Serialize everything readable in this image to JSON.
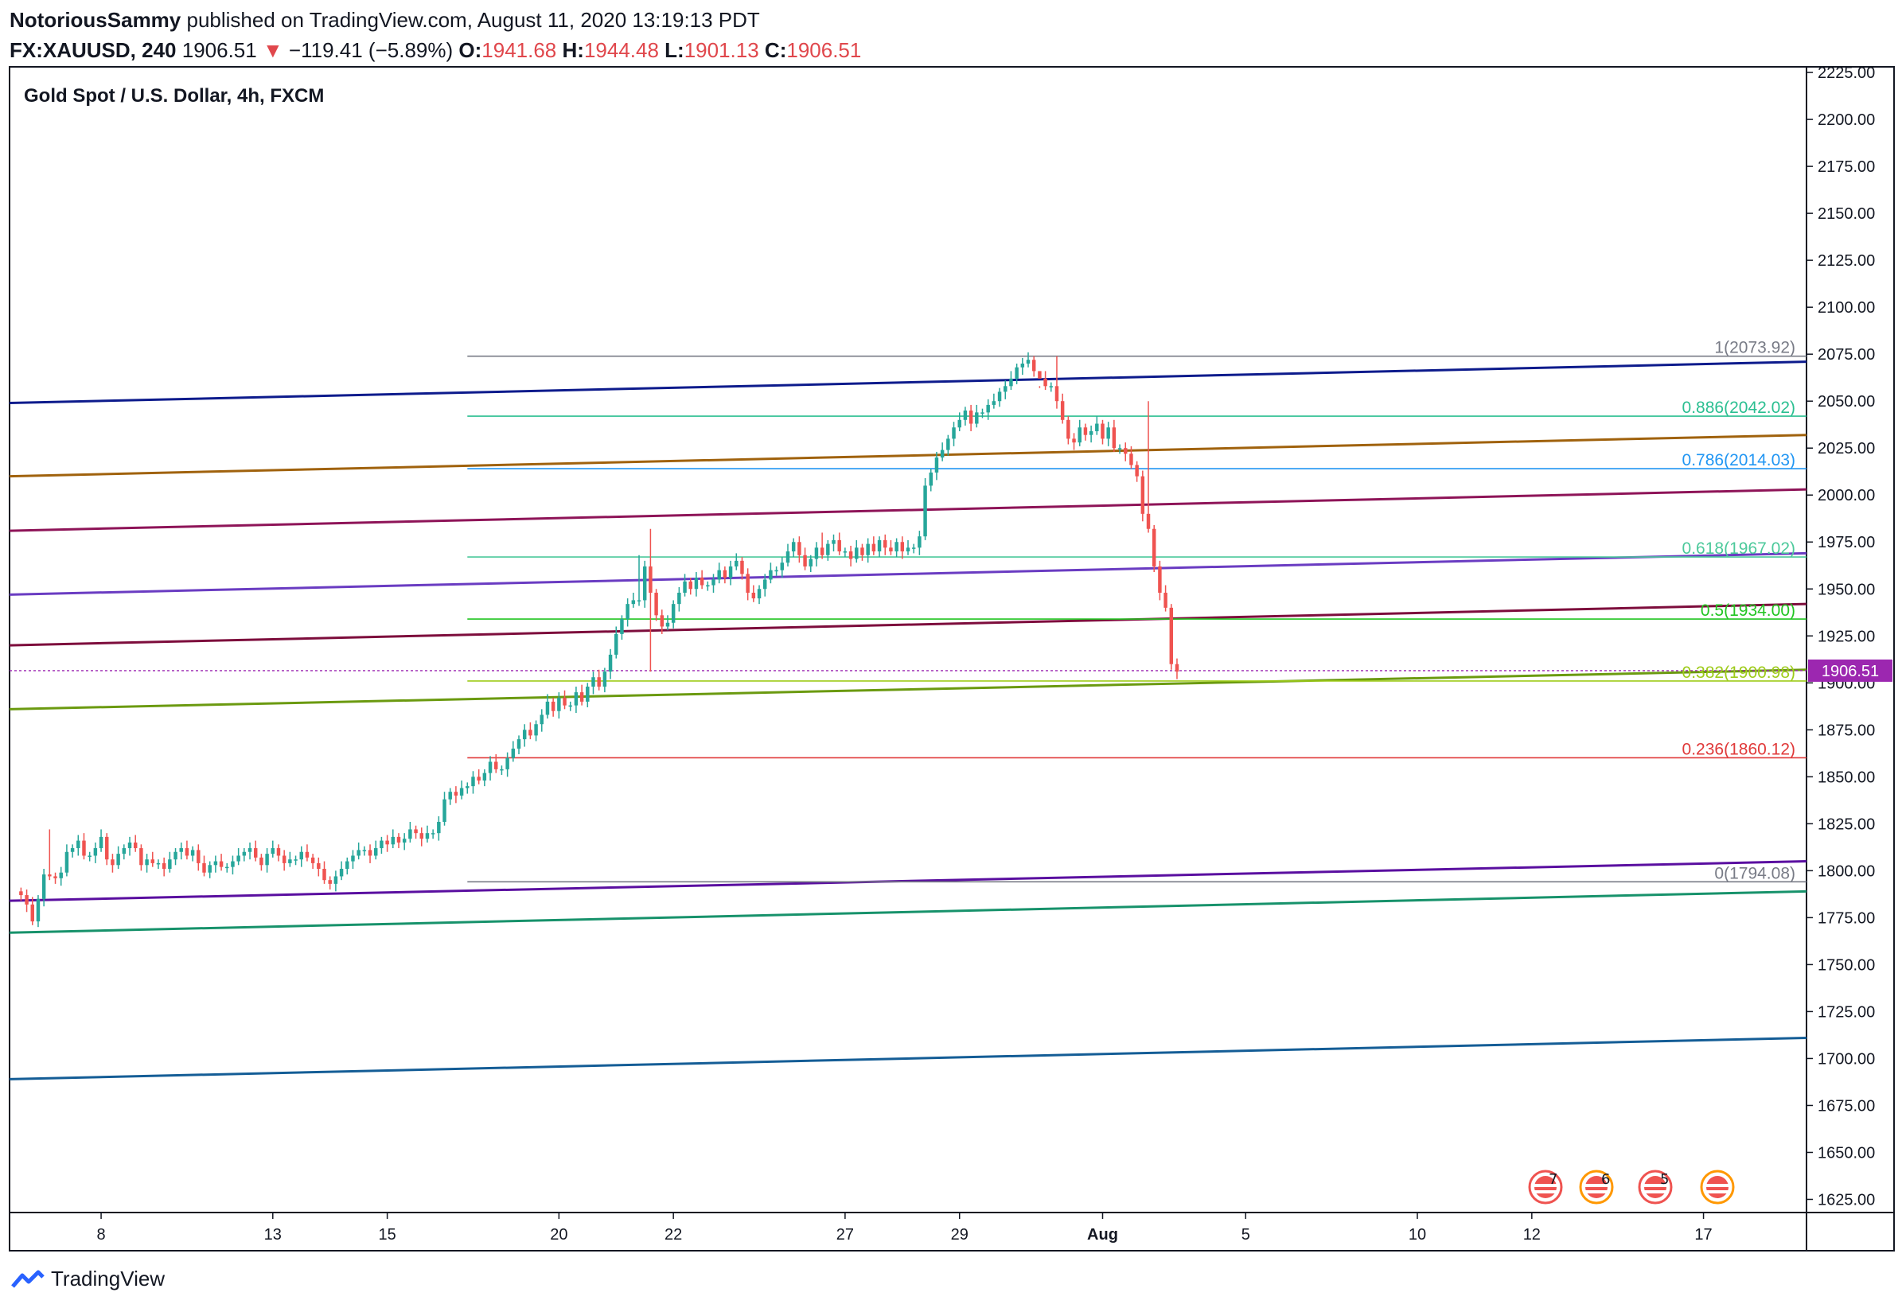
{
  "header": {
    "author": "NotoriousSammy",
    "published_text": "published on TradingView.com, August 11, 2020 13:19:13 PDT",
    "symbol": "FX:XAUUSD, 240",
    "last": "1906.51",
    "change": "−119.41 (−5.89%)",
    "o_label": "O:",
    "o_value": "1941.68",
    "h_label": "H:",
    "h_value": "1944.48",
    "l_label": "L:",
    "l_value": "1901.13",
    "c_label": "C:",
    "c_value": "1906.51"
  },
  "footer": {
    "brand": "TradingView"
  },
  "colors": {
    "up": "#26a69a",
    "down": "#ef5350",
    "axis": "#131722",
    "price_tag": "#9c27b0"
  },
  "chart_data": {
    "type": "candlestick",
    "title": "Gold Spot / U.S. Dollar, 4h, FXCM",
    "ylim": [
      1618,
      2228
    ],
    "y_ticks": [
      1625,
      1650,
      1675,
      1700,
      1725,
      1750,
      1775,
      1800,
      1825,
      1850,
      1875,
      1900,
      1925,
      1950,
      1975,
      2000,
      2025,
      2050,
      2075,
      2100,
      2125,
      2150,
      2175,
      2200,
      2225
    ],
    "x_range": [
      0,
      314
    ],
    "x_ticks": [
      {
        "label": "8",
        "index": 16
      },
      {
        "label": "13",
        "index": 46
      },
      {
        "label": "15",
        "index": 66
      },
      {
        "label": "20",
        "index": 96
      },
      {
        "label": "22",
        "index": 116
      },
      {
        "label": "27",
        "index": 146
      },
      {
        "label": "29",
        "index": 166
      },
      {
        "label": "Aug",
        "index": 191
      },
      {
        "label": "5",
        "index": 216
      },
      {
        "label": "10",
        "index": 246
      },
      {
        "label": "12",
        "index": 266
      },
      {
        "label": "17",
        "index": 296
      }
    ],
    "current_price": "1906.51",
    "current_value": 1906.51,
    "fibonacci": {
      "start_index": 80,
      "levels": [
        {
          "label": "1(2073.92)",
          "value": 2073.92,
          "color": "#787b86"
        },
        {
          "label": "0.886(2042.02)",
          "value": 2042.02,
          "color": "#2bbf91"
        },
        {
          "label": "0.786(2014.03)",
          "value": 2014.03,
          "color": "#2196f3"
        },
        {
          "label": "0.618(1967.02)",
          "value": 1967.02,
          "color": "#4cc99b"
        },
        {
          "label": "0.5(1934.00)",
          "value": 1934.0,
          "color": "#22c522"
        },
        {
          "label": "0.382(1900.98)",
          "value": 1900.98,
          "color": "#9ecb1a"
        },
        {
          "label": "0.236(1860.12)",
          "value": 1860.12,
          "color": "#e03a3a"
        },
        {
          "label": "0(1794.08)",
          "value": 1794.08,
          "color": "#787b86"
        }
      ]
    },
    "trendlines": [
      {
        "color": "#0d1b8c",
        "y_start": 2049,
        "y_end": 2071
      },
      {
        "color": "#a0620d",
        "y_start": 2010,
        "y_end": 2032
      },
      {
        "color": "#8e1458",
        "y_start": 1981,
        "y_end": 2003
      },
      {
        "color": "#6a3cc2",
        "y_start": 1947,
        "y_end": 1969
      },
      {
        "color": "#7d0d3c",
        "y_start": 1920,
        "y_end": 1942
      },
      {
        "color": "#6b9a10",
        "y_start": 1886,
        "y_end": 1907
      },
      {
        "color": "#5a0fa0",
        "y_start": 1784,
        "y_end": 1805
      },
      {
        "color": "#17926b",
        "y_start": 1767,
        "y_end": 1789
      },
      {
        "color": "#145d96",
        "y_start": 1689,
        "y_end": 1711
      }
    ],
    "candles_daily_closes": [
      [
        1787,
        1782,
        1773,
        1785,
        1798,
        1797,
        1796,
        1799,
        1810,
        1812,
        1816,
        1808
      ],
      [
        1808,
        1812,
        1818,
        1806,
        1803,
        1809,
        1812,
        1815,
        1812,
        1803,
        1806,
        1804
      ],
      [
        1804,
        1801,
        1806,
        1810,
        1812,
        1808,
        1811,
        1804,
        1799,
        1803,
        1805,
        1802
      ],
      [
        1802,
        1805,
        1808,
        1810,
        1812,
        1807,
        1803,
        1809,
        1812,
        1808,
        1804,
        1806
      ],
      [
        1806,
        1810,
        1807,
        1804,
        1801,
        1795,
        1793,
        1797,
        1801,
        1805,
        1808,
        1811
      ],
      [
        1811,
        1808,
        1812,
        1816,
        1814,
        1818,
        1815,
        1817,
        1822,
        1820,
        1817,
        1820
      ],
      [
        1820,
        1826,
        1838,
        1842,
        1840,
        1844,
        1845,
        1850,
        1848,
        1852,
        1858,
        1854
      ],
      [
        1854,
        1860,
        1865,
        1870,
        1875,
        1872,
        1878,
        1883,
        1890,
        1885,
        1892,
        1888
      ],
      [
        1888,
        1895,
        1890,
        1898,
        1903,
        1898,
        1906,
        1915,
        1926,
        1934,
        1942,
        1944
      ],
      [
        1944,
        1962,
        1948,
        1936,
        1930,
        1932,
        1942,
        1948,
        1954,
        1950,
        1956,
        1952
      ],
      [
        1952,
        1955,
        1960,
        1956,
        1962,
        1965,
        1958,
        1948,
        1945,
        1950,
        1955,
        1960
      ],
      [
        1960,
        1964,
        1970,
        1975,
        1968,
        1962,
        1966,
        1972,
        1968,
        1974,
        1976,
        1970
      ],
      [
        1970,
        1966,
        1972,
        1968,
        1974,
        1970,
        1976,
        1972,
        1970,
        1975,
        1970,
        1972
      ],
      [
        1972,
        1978,
        2005,
        2012,
        2020,
        2024,
        2030,
        2036,
        2040,
        2045,
        2038,
        2044
      ],
      [
        2044,
        2048,
        2050,
        2055,
        2058,
        2062,
        2068,
        2070,
        2072,
        2066,
        2062,
        2058
      ],
      [
        2058,
        2050,
        2040,
        2030,
        2028,
        2036,
        2032,
        2034,
        2038,
        2030,
        2036,
        2025
      ],
      [
        2025,
        2022,
        2016,
        2010,
        1990,
        1982,
        1962,
        1948,
        1940,
        1910,
        1906
      ]
    ],
    "candle_dev_highs": [
      {
        "index": 5,
        "high": 1822
      },
      {
        "index": 108,
        "high": 1968
      },
      {
        "index": 110,
        "high": 1982
      },
      {
        "index": 140,
        "high": 1980
      },
      {
        "index": 178,
        "high": 2057
      },
      {
        "index": 181,
        "high": 2073.92
      },
      {
        "index": 197,
        "high": 2050
      }
    ],
    "candle_dev_lows": [
      {
        "index": 3,
        "high": 1770
      },
      {
        "index": 110,
        "high": 1906
      },
      {
        "index": 203,
        "high": 1901.13
      }
    ]
  }
}
